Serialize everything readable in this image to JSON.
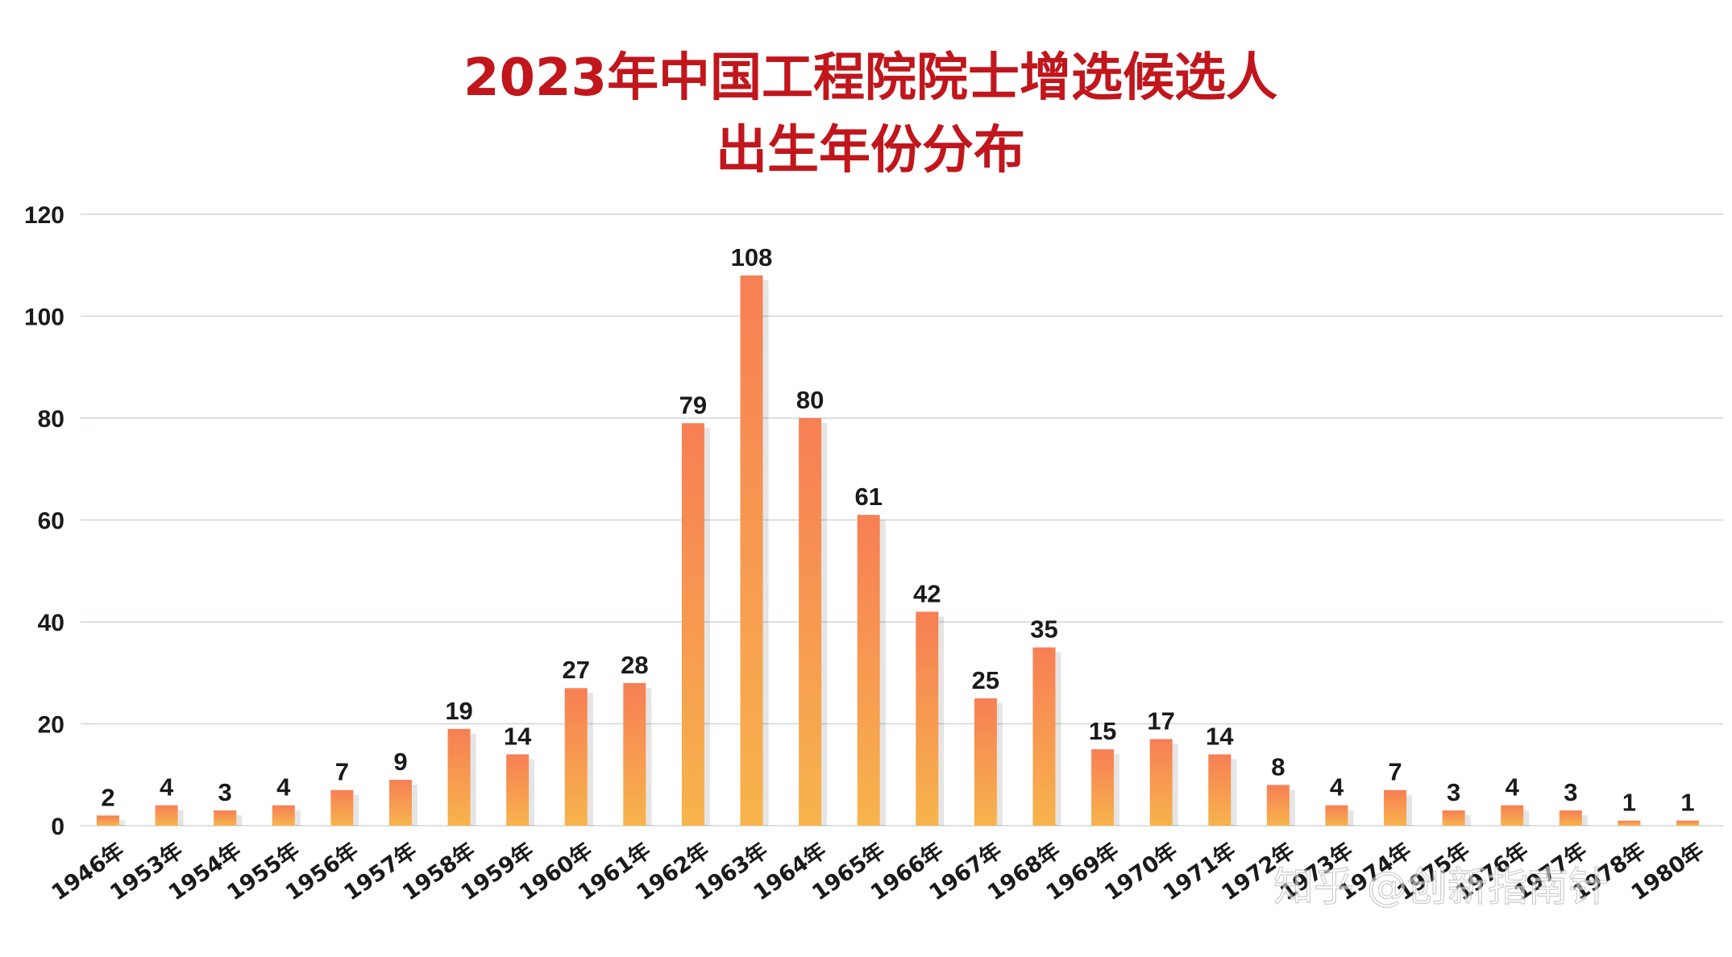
{
  "chart_data": {
    "type": "bar",
    "title_line1": "2023年中国工程院院士增选候选人",
    "title_line2": "出生年份分布",
    "xlabel": "",
    "ylabel": "",
    "ylim": [
      0,
      120
    ],
    "yticks": [
      0,
      20,
      40,
      60,
      80,
      100,
      120
    ],
    "grid": true,
    "legend": "none",
    "categories": [
      "1946年",
      "1953年",
      "1954年",
      "1955年",
      "1956年",
      "1957年",
      "1958年",
      "1959年",
      "1960年",
      "1961年",
      "1962年",
      "1963年",
      "1964年",
      "1965年",
      "1966年",
      "1967年",
      "1968年",
      "1969年",
      "1970年",
      "1971年",
      "1972年",
      "1973年",
      "1974年",
      "1975年",
      "1976年",
      "1977年",
      "1978年",
      "1980年"
    ],
    "values": [
      2,
      4,
      3,
      4,
      7,
      9,
      19,
      14,
      27,
      28,
      79,
      108,
      80,
      61,
      42,
      25,
      35,
      15,
      17,
      14,
      8,
      4,
      7,
      3,
      4,
      3,
      1,
      1
    ],
    "colors": {
      "bar_top": "#f77f55",
      "bar_bottom": "#f7b44c",
      "title": "#c0161c",
      "grid": "#cfd6dc"
    }
  },
  "watermark": "知乎 @创新指南针"
}
